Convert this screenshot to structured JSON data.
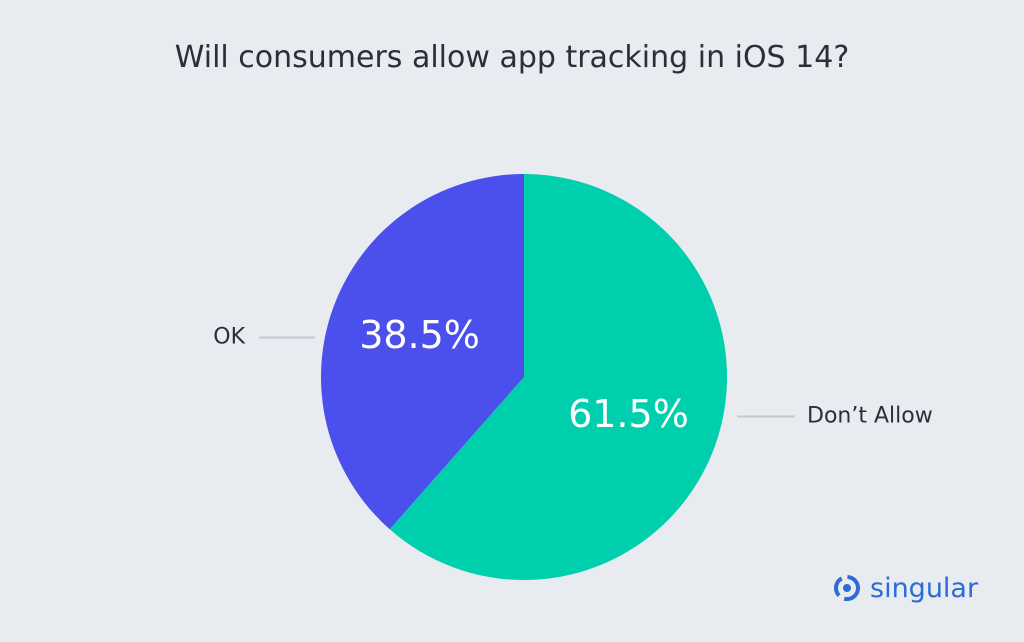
{
  "chart_data": {
    "type": "pie",
    "title": "Will consumers allow app tracking in iOS 14?",
    "slices": [
      {
        "label": "Don’t Allow",
        "value": 61.5,
        "display": "61.5%",
        "color": "#00cfad"
      },
      {
        "label": "OK",
        "value": 38.5,
        "display": "38.5%",
        "color": "#4b4fec"
      }
    ]
  },
  "logo": {
    "text": "singular",
    "color": "#2d6bd6"
  },
  "colors": {
    "background": "#e8ebef",
    "leader_line": "#c5c9d0"
  }
}
